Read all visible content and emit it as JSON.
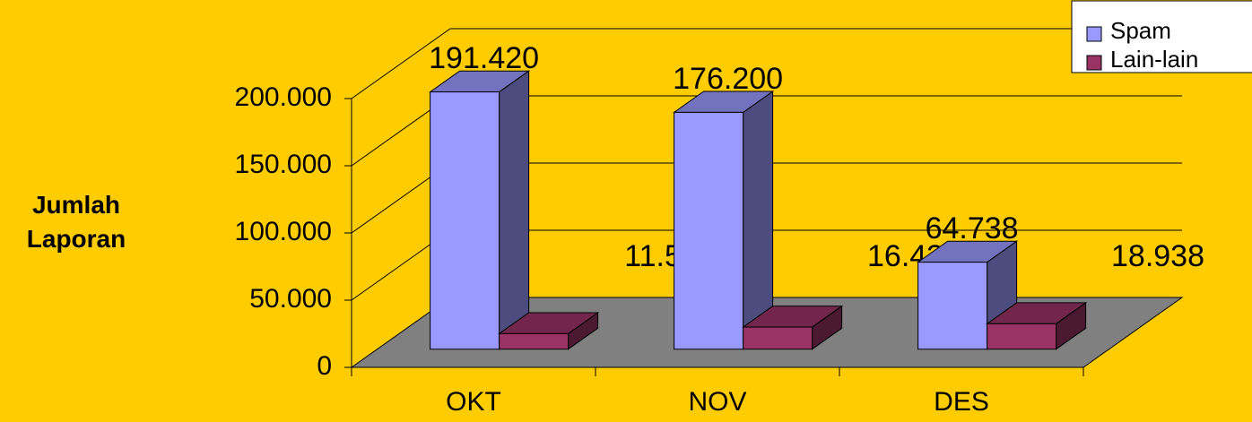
{
  "chart_data": {
    "type": "bar3d",
    "y_label": "Jumlah Laporan",
    "categories": [
      "OKT",
      "NOV",
      "DES"
    ],
    "series": [
      {
        "name": "Spam",
        "color": "#9999ff",
        "values": [
          191420,
          176200,
          64738
        ],
        "value_labels": [
          "191.420",
          "176.200",
          "64.738"
        ]
      },
      {
        "name": "Lain-lain",
        "color": "#993366",
        "values": [
          11541,
          16438,
          18938
        ],
        "value_labels": [
          "11.541",
          "16.438",
          "18.938"
        ]
      }
    ],
    "ylim": [
      0,
      200000
    ],
    "yticks": [
      0,
      {
        "value": 50000,
        "label": "50.000"
      },
      {
        "value": 100000,
        "label": "100.000"
      },
      {
        "value": 150000,
        "label": "150.000"
      },
      {
        "value": 200000,
        "label": "200.000"
      }
    ],
    "grid": true,
    "legend": "top-right"
  }
}
